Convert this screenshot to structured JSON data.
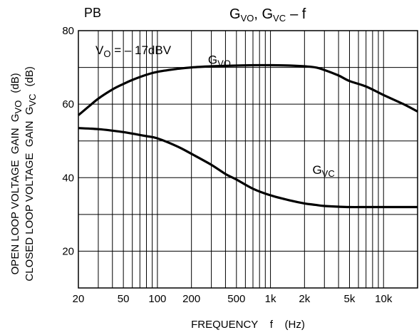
{
  "chart_data": {
    "type": "line",
    "title_main": "G",
    "title_sub1": "VO",
    "title_sep": ", ",
    "title_main2": "G",
    "title_sub2": "VC",
    "title_tail": "–  f",
    "corner_label": "PB",
    "annotation_condition": {
      "prefix": "V",
      "sub": "O",
      "suffix": " = – 17dBV"
    },
    "xlabel": "FREQUENCY    f    (Hz)",
    "ylabel_line1_text": "OPEN LOOP VOLTAGE  GAIN  G",
    "ylabel_line1_sub": "VO",
    "ylabel_line1_unit": "(dB)",
    "ylabel_line2_text": "CLOSED LOOP VOLTAGE  GAIN  G",
    "ylabel_line2_sub": "VC",
    "ylabel_line2_unit": "(dB)",
    "x_scale": "log",
    "xlim": [
      20,
      20000
    ],
    "ylim": [
      10,
      80
    ],
    "grid": true,
    "x_ticks": [
      {
        "value": 20,
        "label": "20"
      },
      {
        "value": 50,
        "label": "50"
      },
      {
        "value": 100,
        "label": "100"
      },
      {
        "value": 200,
        "label": "200"
      },
      {
        "value": 500,
        "label": "500"
      },
      {
        "value": 1000,
        "label": "1k"
      },
      {
        "value": 2000,
        "label": "2k"
      },
      {
        "value": 5000,
        "label": "5k"
      },
      {
        "value": 10000,
        "label": "10k"
      }
    ],
    "y_ticks": [
      {
        "value": 20,
        "label": "20"
      },
      {
        "value": 40,
        "label": "40"
      },
      {
        "value": 60,
        "label": "60"
      },
      {
        "value": 80,
        "label": "80"
      }
    ],
    "series": [
      {
        "name_main": "G",
        "name_sub": "VO",
        "label_anchor": {
          "x": 280,
          "y": 71
        },
        "x": [
          20,
          25,
          30,
          40,
          50,
          60,
          80,
          100,
          150,
          200,
          300,
          500,
          700,
          1000,
          1500,
          2000,
          2500,
          3000,
          4000,
          5000,
          7000,
          10000,
          15000,
          20000
        ],
        "y": [
          57,
          59.5,
          61.5,
          64,
          65.5,
          66.6,
          68,
          68.8,
          69.6,
          70,
          70.3,
          70.5,
          70.6,
          70.6,
          70.5,
          70.3,
          70,
          69.3,
          67.8,
          66.3,
          64.8,
          62.5,
          60,
          58
        ]
      },
      {
        "name_main": "G",
        "name_sub": "VC",
        "label_anchor": {
          "x": 2350,
          "y": 41
        },
        "x": [
          20,
          30,
          40,
          50,
          60,
          80,
          100,
          150,
          200,
          300,
          400,
          500,
          700,
          1000,
          1500,
          2000,
          2500,
          3000,
          4000,
          5000,
          7000,
          10000,
          20000
        ],
        "y": [
          53.5,
          53.2,
          52.8,
          52.4,
          52,
          51.3,
          50.7,
          48.5,
          46.5,
          43.5,
          41,
          39.5,
          37,
          35.2,
          33.8,
          33,
          32.6,
          32.3,
          32.1,
          32,
          32,
          32,
          32
        ]
      }
    ]
  }
}
